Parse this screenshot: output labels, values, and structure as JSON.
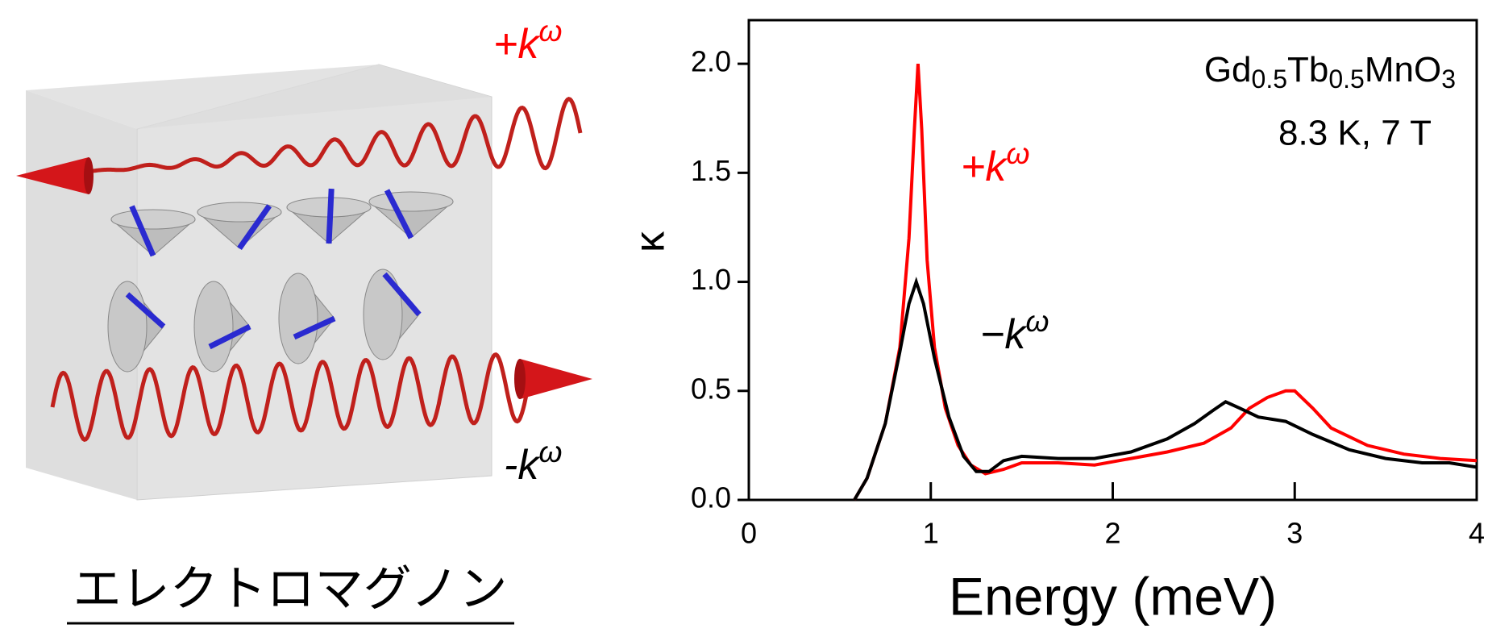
{
  "illustration": {
    "forward_label": "+kω",
    "backward_label": "-kω",
    "caption": "エレクトロマグノン"
  },
  "chart_data": {
    "type": "line",
    "x_label": "Energy (meV)",
    "y_label": "κ",
    "annotations": {
      "material": [
        "Gd",
        "0.5",
        "Tb",
        "0.5",
        "MnO",
        "3"
      ],
      "conditions": "8.3 K, 7 T"
    },
    "xlim": [
      0,
      4
    ],
    "xticks": [
      0,
      1,
      2,
      3,
      4
    ],
    "ylim": [
      0,
      2.2
    ],
    "yticks": [
      {
        "value": 0,
        "label": "0.0"
      },
      0.5,
      {
        "value": 1,
        "label": "1.0"
      },
      1.5,
      {
        "value": 2,
        "label": "2.0"
      }
    ],
    "series": [
      {
        "name": "+kω",
        "color": "#ff0000",
        "x": [
          0.58,
          0.65,
          0.75,
          0.83,
          0.88,
          0.91,
          0.93,
          0.95,
          0.98,
          1.02,
          1.08,
          1.15,
          1.22,
          1.3,
          1.4,
          1.5,
          1.7,
          1.9,
          2.1,
          2.3,
          2.5,
          2.65,
          2.75,
          2.85,
          2.95,
          3.0,
          3.1,
          3.2,
          3.4,
          3.6,
          3.8,
          4.0
        ],
        "values": [
          0,
          0.1,
          0.35,
          0.7,
          1.2,
          1.7,
          2.0,
          1.7,
          1.1,
          0.7,
          0.42,
          0.25,
          0.16,
          0.12,
          0.14,
          0.17,
          0.17,
          0.16,
          0.19,
          0.22,
          0.26,
          0.33,
          0.42,
          0.47,
          0.5,
          0.5,
          0.42,
          0.33,
          0.25,
          0.21,
          0.19,
          0.18
        ]
      },
      {
        "name": "−kω",
        "color": "#000000",
        "x": [
          0.58,
          0.65,
          0.75,
          0.83,
          0.88,
          0.92,
          0.96,
          1.02,
          1.1,
          1.18,
          1.25,
          1.32,
          1.4,
          1.5,
          1.7,
          1.9,
          2.1,
          2.3,
          2.45,
          2.55,
          2.62,
          2.7,
          2.8,
          2.95,
          3.1,
          3.3,
          3.5,
          3.7,
          3.85,
          4.0
        ],
        "values": [
          0,
          0.1,
          0.35,
          0.68,
          0.9,
          1.0,
          0.9,
          0.65,
          0.38,
          0.2,
          0.13,
          0.13,
          0.18,
          0.2,
          0.19,
          0.19,
          0.22,
          0.28,
          0.35,
          0.41,
          0.45,
          0.42,
          0.38,
          0.36,
          0.3,
          0.23,
          0.19,
          0.17,
          0.17,
          0.15
        ]
      }
    ]
  }
}
